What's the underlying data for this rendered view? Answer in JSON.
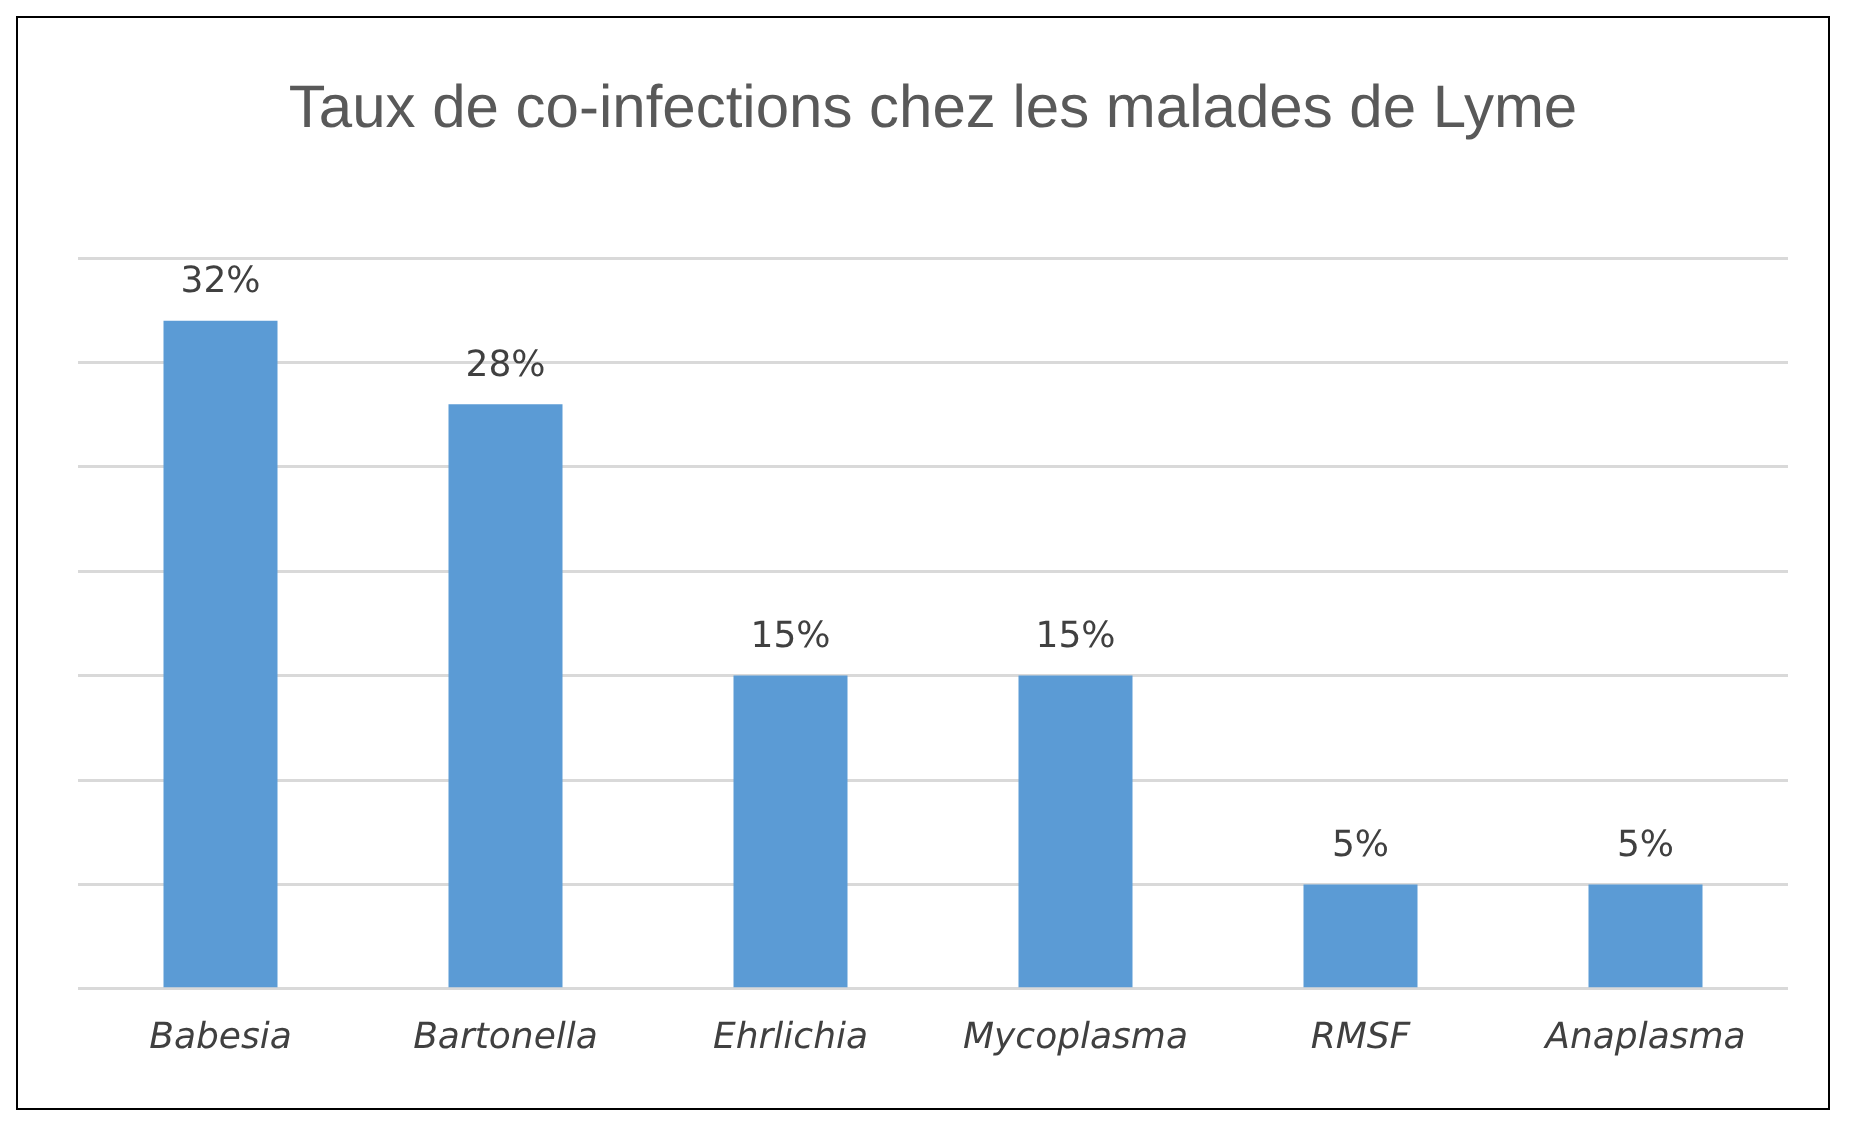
{
  "chart_data": {
    "type": "bar",
    "title": "Taux de co-infections chez les malades de Lyme",
    "categories": [
      "Babesia",
      "Bartonella",
      "Ehrlichia",
      "Mycoplasma",
      "RMSF",
      "Anaplasma"
    ],
    "values": [
      32,
      28,
      15,
      15,
      5,
      5
    ],
    "value_labels": [
      "32%",
      "28%",
      "15%",
      "15%",
      "5%",
      "5%"
    ],
    "color": "#5b9bd5",
    "ylim": [
      0,
      35
    ],
    "yticks": [
      {
        "value": 0,
        "label": null
      },
      {
        "value": 5,
        "label": null
      },
      {
        "value": 10,
        "label": null
      },
      {
        "value": 15,
        "label": null
      },
      {
        "value": 20,
        "label": null
      },
      {
        "value": 25,
        "label": null
      },
      {
        "value": 30,
        "label": null
      },
      {
        "value": 35,
        "label": null
      }
    ],
    "grid": "y",
    "tick_labels": "x",
    "legend": false
  }
}
